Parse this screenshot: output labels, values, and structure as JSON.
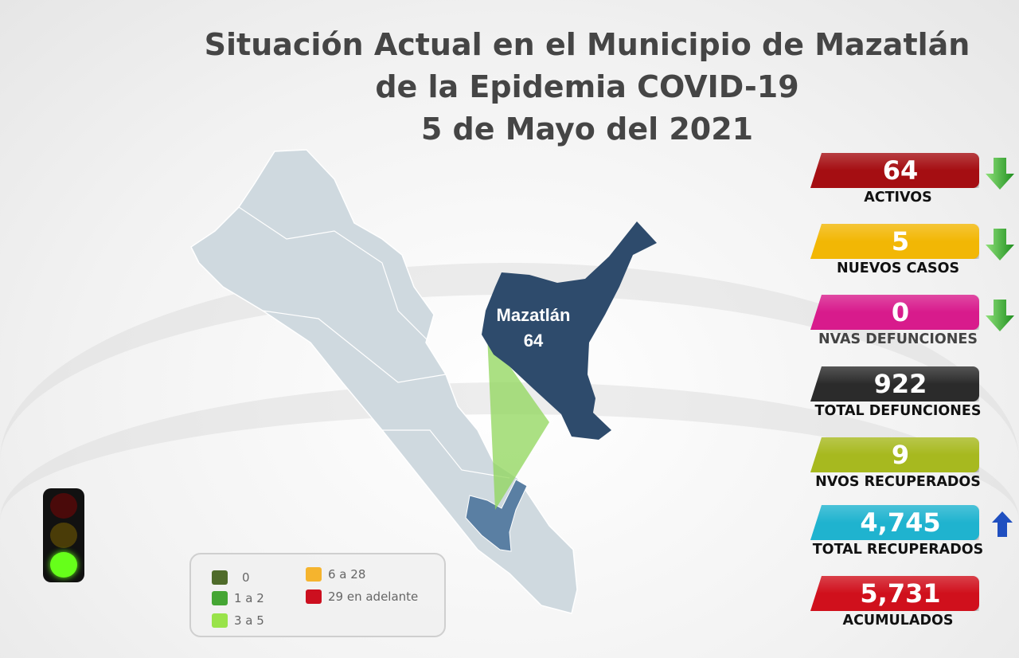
{
  "title": {
    "line1": "Situación Actual en el Municipio de Mazatlán",
    "line2": "de la Epidemia COVID-19",
    "line3": "5 de Mayo del 2021"
  },
  "map": {
    "municipality_name": "Mazatlán",
    "municipality_value": "64",
    "colors": {
      "state": "#cfd9df",
      "municipality": "#2e4b6c",
      "wedge": "#8fd65a"
    }
  },
  "legend": [
    {
      "label": "0",
      "color": "#4f6b2a"
    },
    {
      "label": "1 a 2",
      "color": "#45a634"
    },
    {
      "label": "3 a 5",
      "color": "#99e34a"
    },
    {
      "label": "6 a 28",
      "color": "#f5b42e"
    },
    {
      "label": "29 en adelante",
      "color": "#cc0f1f"
    }
  ],
  "traffic_light": {
    "active": "green",
    "colors": {
      "red": "#4a0a0a",
      "yellow": "#4a3c08",
      "green": "#66ff1a"
    }
  },
  "stats": [
    {
      "value": "64",
      "label": "ACTIVOS",
      "color": "#a50e12",
      "trend": "down",
      "trend_icon": "green-down-arrow"
    },
    {
      "value": "5",
      "label": "NUEVOS CASOS",
      "color": "#f2b705",
      "trend": "down",
      "trend_icon": "green-down-arrow"
    },
    {
      "value": "0",
      "label": "NVAS DEFUNCIONES",
      "color": "#d81b8c",
      "trend": "down",
      "trend_icon": "green-down-arrow"
    },
    {
      "value": "922",
      "label": "TOTAL DEFUNCIONES",
      "color": "#2b2b2b",
      "trend": "none"
    },
    {
      "value": "9",
      "label": "NVOS RECUPERADOS",
      "color": "#a7b91f",
      "trend": "none"
    },
    {
      "value": "4,745",
      "label": "TOTAL RECUPERADOS",
      "color": "#1fb3cf",
      "trend": "up",
      "trend_icon": "blue-up-arrow"
    },
    {
      "value": "5,731",
      "label": "ACUMULADOS",
      "color": "#d0101c",
      "trend": "none"
    }
  ]
}
